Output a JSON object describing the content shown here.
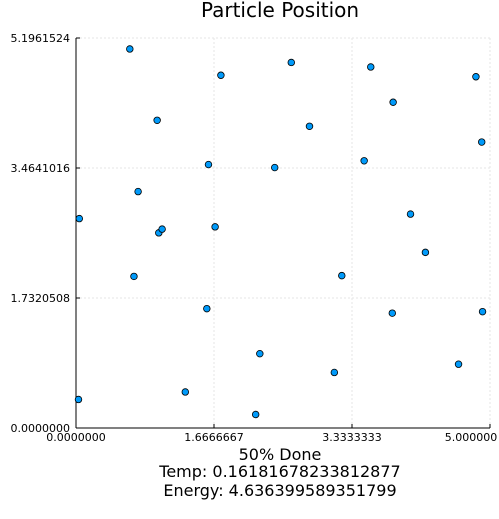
{
  "chart_data": {
    "type": "scatter",
    "title": "Particle Position",
    "xlabel_lines": [
      "50% Done",
      "Temp: 0.16181678233812877",
      "Energy: 4.636399589351799"
    ],
    "ylabel": "",
    "xlim": [
      0,
      5
    ],
    "ylim": [
      0,
      5.1961524
    ],
    "xticks": [
      0,
      1.6666667,
      3.3333333,
      5.0
    ],
    "xtick_labels": [
      "0.0000000",
      "1.6666667",
      "3.3333333",
      "5.000000"
    ],
    "yticks": [
      0,
      1.7320508,
      3.4641016,
      5.1961524
    ],
    "ytick_labels": [
      "0.0000000",
      "1.7320508",
      "3.4641016",
      "5.1961524"
    ],
    "grid": true,
    "legend": "none",
    "marker_color": "#009AFA",
    "series": [
      {
        "x": [
          0.65,
          0.98,
          0.75,
          1.75,
          1.0,
          0.04,
          0.7,
          1.04,
          1.68,
          1.6,
          0.03,
          1.32,
          1.58,
          2.17,
          2.4,
          2.22,
          2.82,
          3.12,
          3.48,
          4.83,
          4.9,
          3.83,
          3.56,
          4.04,
          4.22,
          3.21,
          3.82,
          4.91,
          4.62,
          2.6
        ],
        "y": [
          5.05,
          4.1,
          3.15,
          4.7,
          2.6,
          2.79,
          2.02,
          2.65,
          2.68,
          3.51,
          0.38,
          0.48,
          1.59,
          0.18,
          3.47,
          0.99,
          4.02,
          0.74,
          3.56,
          4.68,
          3.81,
          4.34,
          4.81,
          2.85,
          2.34,
          2.03,
          1.53,
          1.55,
          0.85,
          4.87
        ]
      }
    ]
  }
}
